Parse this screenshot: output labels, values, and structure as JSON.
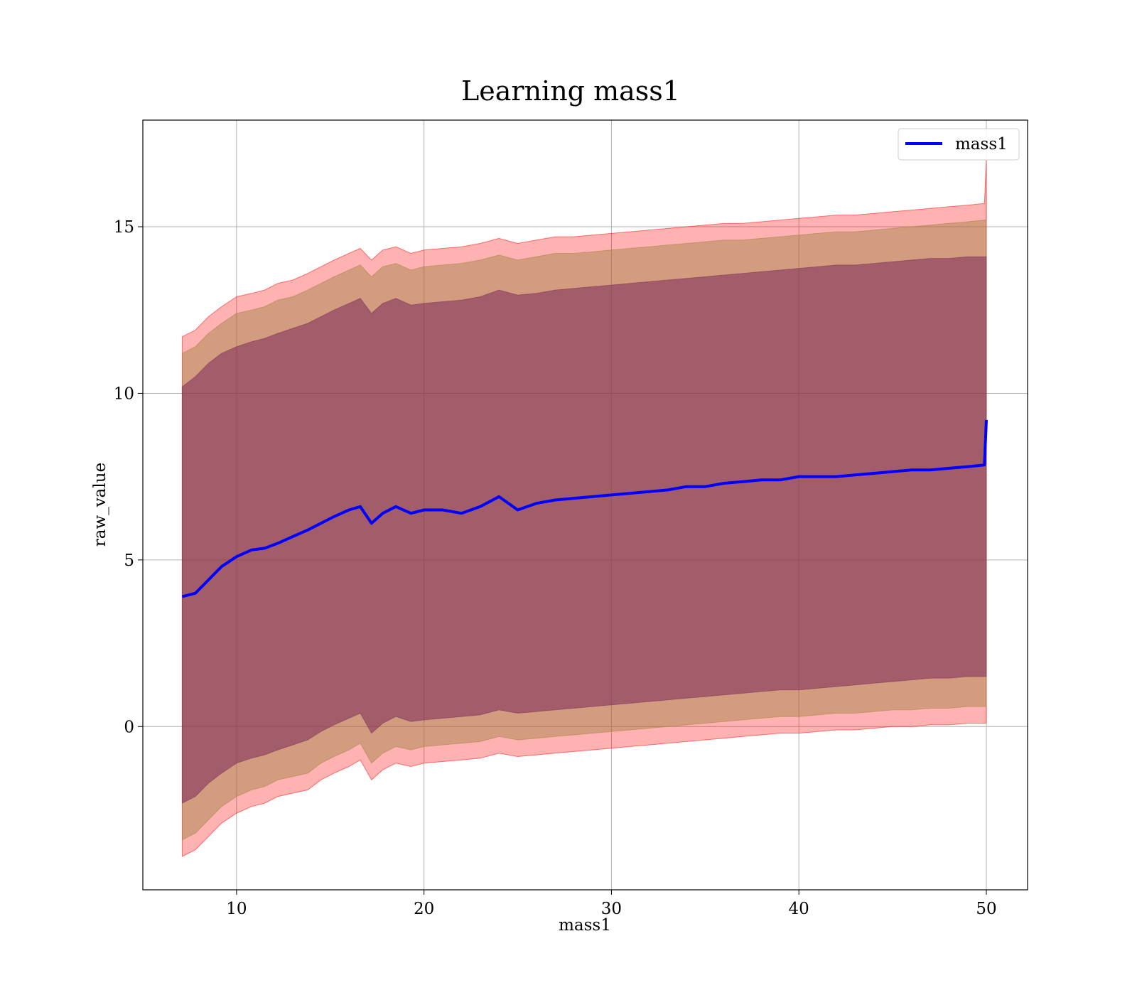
{
  "chart_data": {
    "type": "area",
    "title": "Learning mass1",
    "xlabel": "mass1",
    "ylabel": "raw_value",
    "xlim": [
      5.0,
      52.2
    ],
    "ylim": [
      -4.9,
      18.2
    ],
    "xticks": [
      10,
      20,
      30,
      40,
      50
    ],
    "yticks": [
      0,
      5,
      10,
      15
    ],
    "grid": true,
    "legend": {
      "placement": "top-right",
      "entries": [
        "mass1"
      ]
    },
    "mean_series": {
      "name": "mass1",
      "color": "#0000ff",
      "x": [
        7.1,
        7.8,
        8.5,
        9.2,
        10.0,
        10.8,
        11.5,
        12.2,
        13.0,
        13.8,
        14.5,
        15.2,
        16.0,
        16.6,
        17.2,
        17.8,
        18.5,
        19.3,
        20.0,
        21.0,
        22.0,
        23.0,
        24.0,
        25.0,
        26.0,
        27.0,
        28.0,
        29.0,
        30.0,
        31.0,
        32.0,
        33.0,
        34.0,
        35.0,
        36.0,
        37.0,
        38.0,
        39.0,
        40.0,
        41.0,
        42.0,
        43.0,
        44.0,
        45.0,
        46.0,
        47.0,
        48.0,
        49.0,
        49.9,
        50.0
      ],
      "values": [
        3.9,
        4.0,
        4.4,
        4.8,
        5.1,
        5.3,
        5.35,
        5.5,
        5.7,
        5.9,
        6.1,
        6.3,
        6.5,
        6.6,
        6.1,
        6.4,
        6.6,
        6.4,
        6.5,
        6.5,
        6.4,
        6.6,
        6.9,
        6.5,
        6.7,
        6.8,
        6.85,
        6.9,
        6.95,
        7.0,
        7.05,
        7.1,
        7.2,
        7.2,
        7.3,
        7.35,
        7.4,
        7.4,
        7.5,
        7.5,
        7.5,
        7.55,
        7.6,
        7.65,
        7.7,
        7.7,
        7.75,
        7.8,
        7.85,
        9.2
      ]
    },
    "bands": [
      {
        "color": "#ff0000",
        "opacity": 0.3,
        "upper": [
          11.7,
          11.9,
          12.3,
          12.6,
          12.9,
          13.0,
          13.1,
          13.3,
          13.4,
          13.6,
          13.8,
          14.0,
          14.2,
          14.35,
          14.0,
          14.3,
          14.4,
          14.2,
          14.3,
          14.35,
          14.4,
          14.5,
          14.65,
          14.5,
          14.6,
          14.7,
          14.7,
          14.75,
          14.8,
          14.85,
          14.9,
          14.95,
          15.0,
          15.05,
          15.1,
          15.1,
          15.15,
          15.2,
          15.25,
          15.3,
          15.35,
          15.35,
          15.4,
          15.45,
          15.5,
          15.55,
          15.6,
          15.65,
          15.7,
          17.0
        ],
        "lower": [
          -3.9,
          -3.7,
          -3.3,
          -2.9,
          -2.6,
          -2.4,
          -2.3,
          -2.1,
          -2.0,
          -1.9,
          -1.6,
          -1.4,
          -1.2,
          -1.0,
          -1.6,
          -1.3,
          -1.1,
          -1.2,
          -1.1,
          -1.05,
          -1.0,
          -0.95,
          -0.8,
          -0.9,
          -0.85,
          -0.8,
          -0.75,
          -0.7,
          -0.65,
          -0.6,
          -0.55,
          -0.5,
          -0.45,
          -0.4,
          -0.35,
          -0.3,
          -0.25,
          -0.2,
          -0.2,
          -0.15,
          -0.1,
          -0.1,
          -0.05,
          0.0,
          0.0,
          0.05,
          0.05,
          0.1,
          0.1,
          0.1
        ]
      },
      {
        "color": "#a08040",
        "opacity": 0.45,
        "upper": [
          11.2,
          11.4,
          11.8,
          12.1,
          12.4,
          12.5,
          12.6,
          12.8,
          12.9,
          13.1,
          13.3,
          13.5,
          13.7,
          13.85,
          13.5,
          13.8,
          13.9,
          13.7,
          13.8,
          13.85,
          13.9,
          14.0,
          14.15,
          14.0,
          14.1,
          14.2,
          14.2,
          14.25,
          14.3,
          14.35,
          14.4,
          14.45,
          14.5,
          14.55,
          14.6,
          14.6,
          14.65,
          14.7,
          14.75,
          14.8,
          14.85,
          14.85,
          14.9,
          14.95,
          15.0,
          15.05,
          15.1,
          15.15,
          15.2,
          15.2
        ],
        "lower": [
          -3.4,
          -3.2,
          -2.8,
          -2.4,
          -2.1,
          -1.9,
          -1.8,
          -1.6,
          -1.5,
          -1.4,
          -1.1,
          -0.9,
          -0.7,
          -0.5,
          -1.1,
          -0.8,
          -0.6,
          -0.7,
          -0.6,
          -0.55,
          -0.5,
          -0.45,
          -0.3,
          -0.4,
          -0.35,
          -0.3,
          -0.25,
          -0.2,
          -0.15,
          -0.1,
          -0.05,
          0.0,
          0.05,
          0.1,
          0.15,
          0.2,
          0.25,
          0.3,
          0.3,
          0.35,
          0.4,
          0.4,
          0.45,
          0.5,
          0.5,
          0.55,
          0.55,
          0.6,
          0.6,
          0.6
        ]
      },
      {
        "color": "#7a2a5a",
        "opacity": 0.55,
        "upper": [
          10.2,
          10.5,
          10.9,
          11.2,
          11.4,
          11.55,
          11.65,
          11.8,
          11.95,
          12.1,
          12.3,
          12.5,
          12.7,
          12.85,
          12.4,
          12.7,
          12.85,
          12.65,
          12.7,
          12.75,
          12.8,
          12.9,
          13.1,
          12.95,
          13.0,
          13.1,
          13.15,
          13.2,
          13.25,
          13.3,
          13.35,
          13.4,
          13.45,
          13.5,
          13.55,
          13.6,
          13.65,
          13.7,
          13.75,
          13.8,
          13.85,
          13.85,
          13.9,
          13.95,
          14.0,
          14.05,
          14.05,
          14.1,
          14.1,
          14.1
        ],
        "lower": [
          -2.3,
          -2.1,
          -1.7,
          -1.4,
          -1.1,
          -0.95,
          -0.85,
          -0.7,
          -0.55,
          -0.4,
          -0.15,
          0.05,
          0.25,
          0.4,
          -0.2,
          0.1,
          0.3,
          0.15,
          0.2,
          0.25,
          0.3,
          0.35,
          0.5,
          0.4,
          0.45,
          0.5,
          0.55,
          0.6,
          0.65,
          0.7,
          0.75,
          0.8,
          0.85,
          0.9,
          0.95,
          1.0,
          1.05,
          1.1,
          1.1,
          1.15,
          1.2,
          1.25,
          1.3,
          1.35,
          1.4,
          1.45,
          1.45,
          1.5,
          1.5,
          1.5
        ]
      }
    ]
  }
}
